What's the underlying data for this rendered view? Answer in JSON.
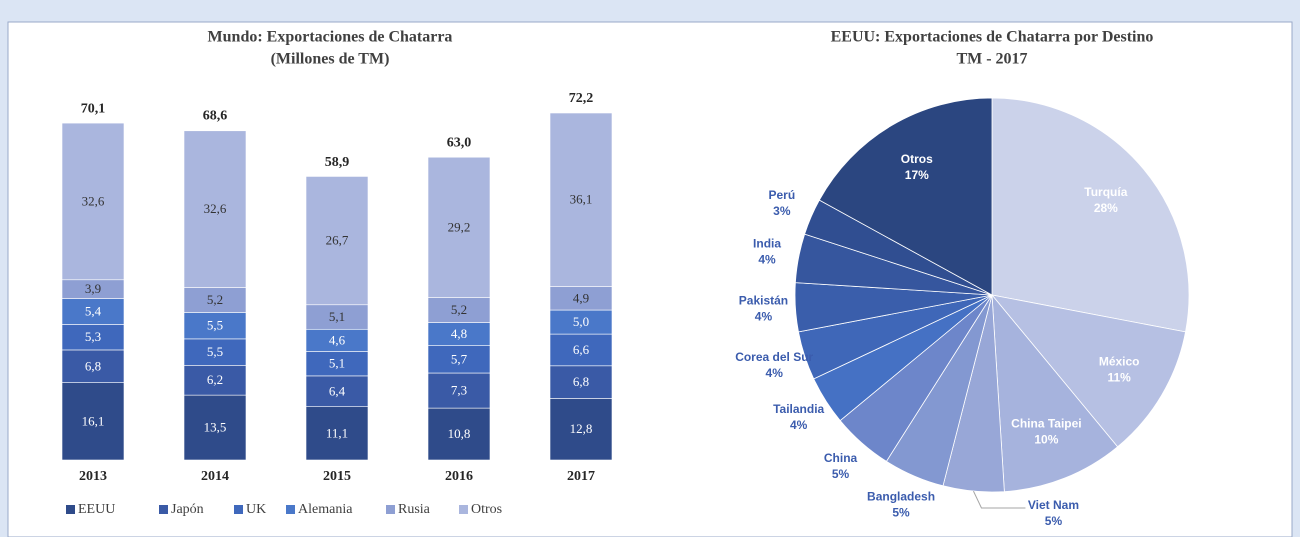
{
  "chart_data": [
    {
      "type": "stacked_bar",
      "title": "Mundo: Exportaciones de Chatarra",
      "subtitle": "(Millones de TM)",
      "categories": [
        "2013",
        "2014",
        "2015",
        "2016",
        "2017"
      ],
      "series": [
        {
          "name": "EEUU",
          "color": "#2f4b8a",
          "values": [
            16.1,
            13.5,
            11.1,
            10.8,
            12.8
          ],
          "value_labels": [
            "16,1",
            "13,5",
            "11,1",
            "10,8",
            "12,8"
          ]
        },
        {
          "name": "Japón",
          "color": "#3a5aa6",
          "values": [
            6.8,
            6.2,
            6.4,
            7.3,
            6.8
          ],
          "value_labels": [
            "6,8",
            "6,2",
            "6,4",
            "7,3",
            "6,8"
          ]
        },
        {
          "name": "UK",
          "color": "#3f68bc",
          "values": [
            5.3,
            5.5,
            5.1,
            5.7,
            6.6
          ],
          "value_labels": [
            "5,3",
            "5,5",
            "5,1",
            "5,7",
            "6,6"
          ]
        },
        {
          "name": "Alemania",
          "color": "#4a78c9",
          "values": [
            5.4,
            5.5,
            4.6,
            4.8,
            5.0
          ],
          "value_labels": [
            "5,4",
            "5,5",
            "4,6",
            "4,8",
            "5,0"
          ]
        },
        {
          "name": "Rusia",
          "color": "#8e9fd3",
          "values": [
            3.9,
            5.2,
            5.1,
            5.2,
            4.9
          ],
          "value_labels": [
            "3,9",
            "5,2",
            "5,1",
            "5,2",
            "4,9"
          ]
        },
        {
          "name": "Otros",
          "color": "#aab6de",
          "values": [
            32.6,
            32.6,
            26.7,
            29.2,
            36.1
          ],
          "value_labels": [
            "32,6",
            "32,6",
            "26,7",
            "29,2",
            "36,1"
          ]
        }
      ],
      "totals": [
        70.1,
        68.6,
        58.9,
        63.0,
        72.2
      ],
      "total_labels": [
        "70,1",
        "68,6",
        "58,9",
        "63,0",
        "72,2"
      ],
      "legend": "bottom"
    },
    {
      "type": "pie",
      "title": "EEUU: Exportaciones de Chatarra por Destino",
      "subtitle": "TM - 2017",
      "categories": [
        "Turquía",
        "México",
        "China Taipei",
        "Viet Nam",
        "Bangladesh",
        "China",
        "Tailandia",
        "Corea del Sur",
        "Pakistán",
        "India",
        "Perú",
        "Otros"
      ],
      "values": [
        28,
        11,
        10,
        5,
        5,
        5,
        4,
        4,
        4,
        4,
        3,
        17
      ],
      "value_labels": [
        "28%",
        "11%",
        "10%",
        "5%",
        "5%",
        "5%",
        "4%",
        "4%",
        "4%",
        "4%",
        "3%",
        "17%"
      ],
      "colors": [
        "#cbd2ea",
        "#b6c0e3",
        "#a6b3dd",
        "#98a7d7",
        "#8398d1",
        "#6d86ca",
        "#4571c4",
        "#3f67b8",
        "#3a5eab",
        "#36569e",
        "#304e91",
        "#2b4680"
      ]
    }
  ]
}
